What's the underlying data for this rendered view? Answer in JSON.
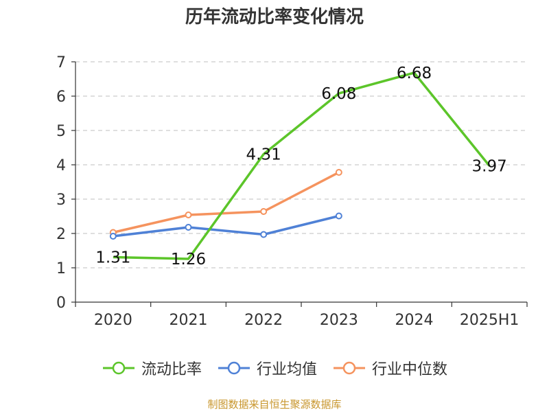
{
  "chart_data": {
    "type": "line",
    "title": "历年流动比率变化情况",
    "categories": [
      "2020",
      "2021",
      "2022",
      "2023",
      "2024",
      "2025H1"
    ],
    "ylim": [
      0,
      7
    ],
    "yticks": [
      "0",
      "1",
      "2",
      "3",
      "4",
      "5",
      "6",
      "7"
    ],
    "grid": true,
    "legend_position": "bottom",
    "series": [
      {
        "name": "流动比率",
        "color": "#5cc52a",
        "values": [
          1.31,
          1.26,
          4.31,
          6.08,
          6.68,
          3.97
        ],
        "data_labels": [
          "1.31",
          "1.26",
          "4.31",
          "6.08",
          "6.68",
          "3.97"
        ]
      },
      {
        "name": "行业均值",
        "color": "#4f81d6",
        "values": [
          1.92,
          2.18,
          1.97,
          2.51,
          null,
          null
        ]
      },
      {
        "name": "行业中位数",
        "color": "#f5935e",
        "values": [
          2.03,
          2.54,
          2.64,
          3.78,
          null,
          null
        ]
      }
    ]
  },
  "source_note": "制图数据来自恒生聚源数据库"
}
